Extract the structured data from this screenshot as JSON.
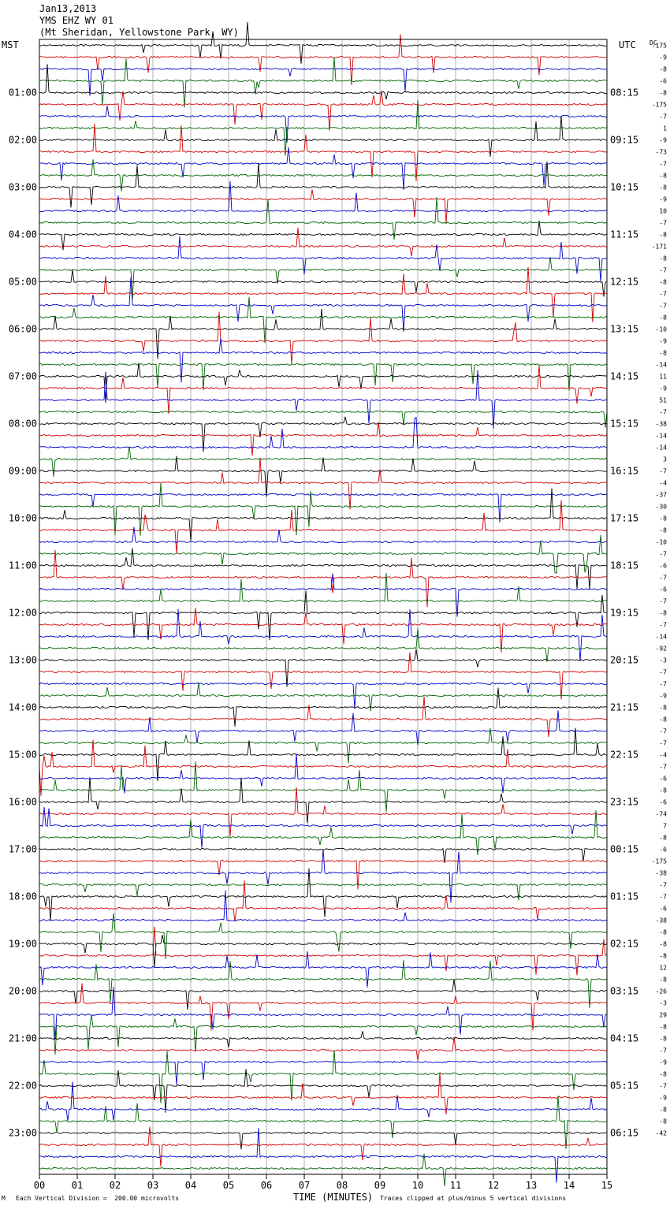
{
  "header": {
    "date": "Jan13,2013",
    "station": "YMS EHZ WY 01",
    "location": "(Mt Sheridan, Yellowstone Park, WY)"
  },
  "left_tz": "MST",
  "right_tz": "UTC",
  "dc_label": "DC",
  "footer": {
    "left": "Each Vertical Division =  200.00 microvolts",
    "center": "TIME (MINUTES)",
    "right": "Traces clipped at plus/minus 5 vertical divisions",
    "corner": "M"
  },
  "colors": {
    "trace_cycle": [
      "#000000",
      "#d40000",
      "#0000cc",
      "#006400"
    ],
    "grid": "#808080"
  },
  "chart_data": {
    "type": "line",
    "x_ticks": [
      "00",
      "01",
      "02",
      "03",
      "04",
      "05",
      "06",
      "07",
      "08",
      "09",
      "10",
      "11",
      "12",
      "13",
      "14",
      "15"
    ],
    "xlim": [
      0,
      15
    ],
    "xlabel": "TIME (MINUTES)",
    "traces_per_hour": 4,
    "left_hour_labels": [
      "01:00",
      "02:00",
      "03:00",
      "04:00",
      "05:00",
      "06:00",
      "07:00",
      "08:00",
      "09:00",
      "10:00",
      "11:00",
      "12:00",
      "13:00",
      "14:00",
      "15:00",
      "16:00",
      "17:00",
      "18:00",
      "19:00",
      "20:00",
      "21:00",
      "22:00",
      "23:00"
    ],
    "right_hour_labels": [
      "08:15",
      "09:15",
      "10:15",
      "11:15",
      "12:15",
      "13:15",
      "14:15",
      "15:15",
      "16:15",
      "17:15",
      "18:15",
      "19:15",
      "20:15",
      "21:15",
      "22:15",
      "23:15",
      "00:15",
      "01:15",
      "02:15",
      "03:15",
      "04:15",
      "05:15",
      "06:15"
    ],
    "dc_offsets": [
      "-175",
      "-9",
      "-8",
      "-6",
      "-8",
      "-175",
      "-7",
      "1",
      "-9",
      "-73",
      "-7",
      "-8",
      "-8",
      "-9",
      "10",
      "-7",
      "-8",
      "-171",
      "-8",
      "-7",
      "-8",
      "-7",
      "-7",
      "-8",
      "-10",
      "-9",
      "-8",
      "-14",
      "11",
      "-9",
      "51",
      "-7",
      "-38",
      "-14",
      "-14",
      "3",
      "-7",
      "-4",
      "-37",
      "-30",
      "-8",
      "-8",
      "-10",
      "-7",
      "-6",
      "-7",
      "-6",
      "-7",
      "-8",
      "-7",
      "-14",
      "-92",
      "-3",
      "-7",
      "-7",
      "-9",
      "-8",
      "-8",
      "-7",
      "-7",
      "-4",
      "-7",
      "-6",
      "-8",
      "-6",
      "-74",
      "7",
      "-8",
      "-6",
      "-175",
      "-38",
      "-7",
      "-7",
      "-6",
      "-38",
      "-8",
      "-8",
      "-8",
      "12",
      "-8",
      "-26",
      "-3",
      "29",
      "-8",
      "-8",
      "-7",
      "-9",
      "-8",
      "-7",
      "-9",
      "-8",
      "-8",
      "-42"
    ]
  }
}
